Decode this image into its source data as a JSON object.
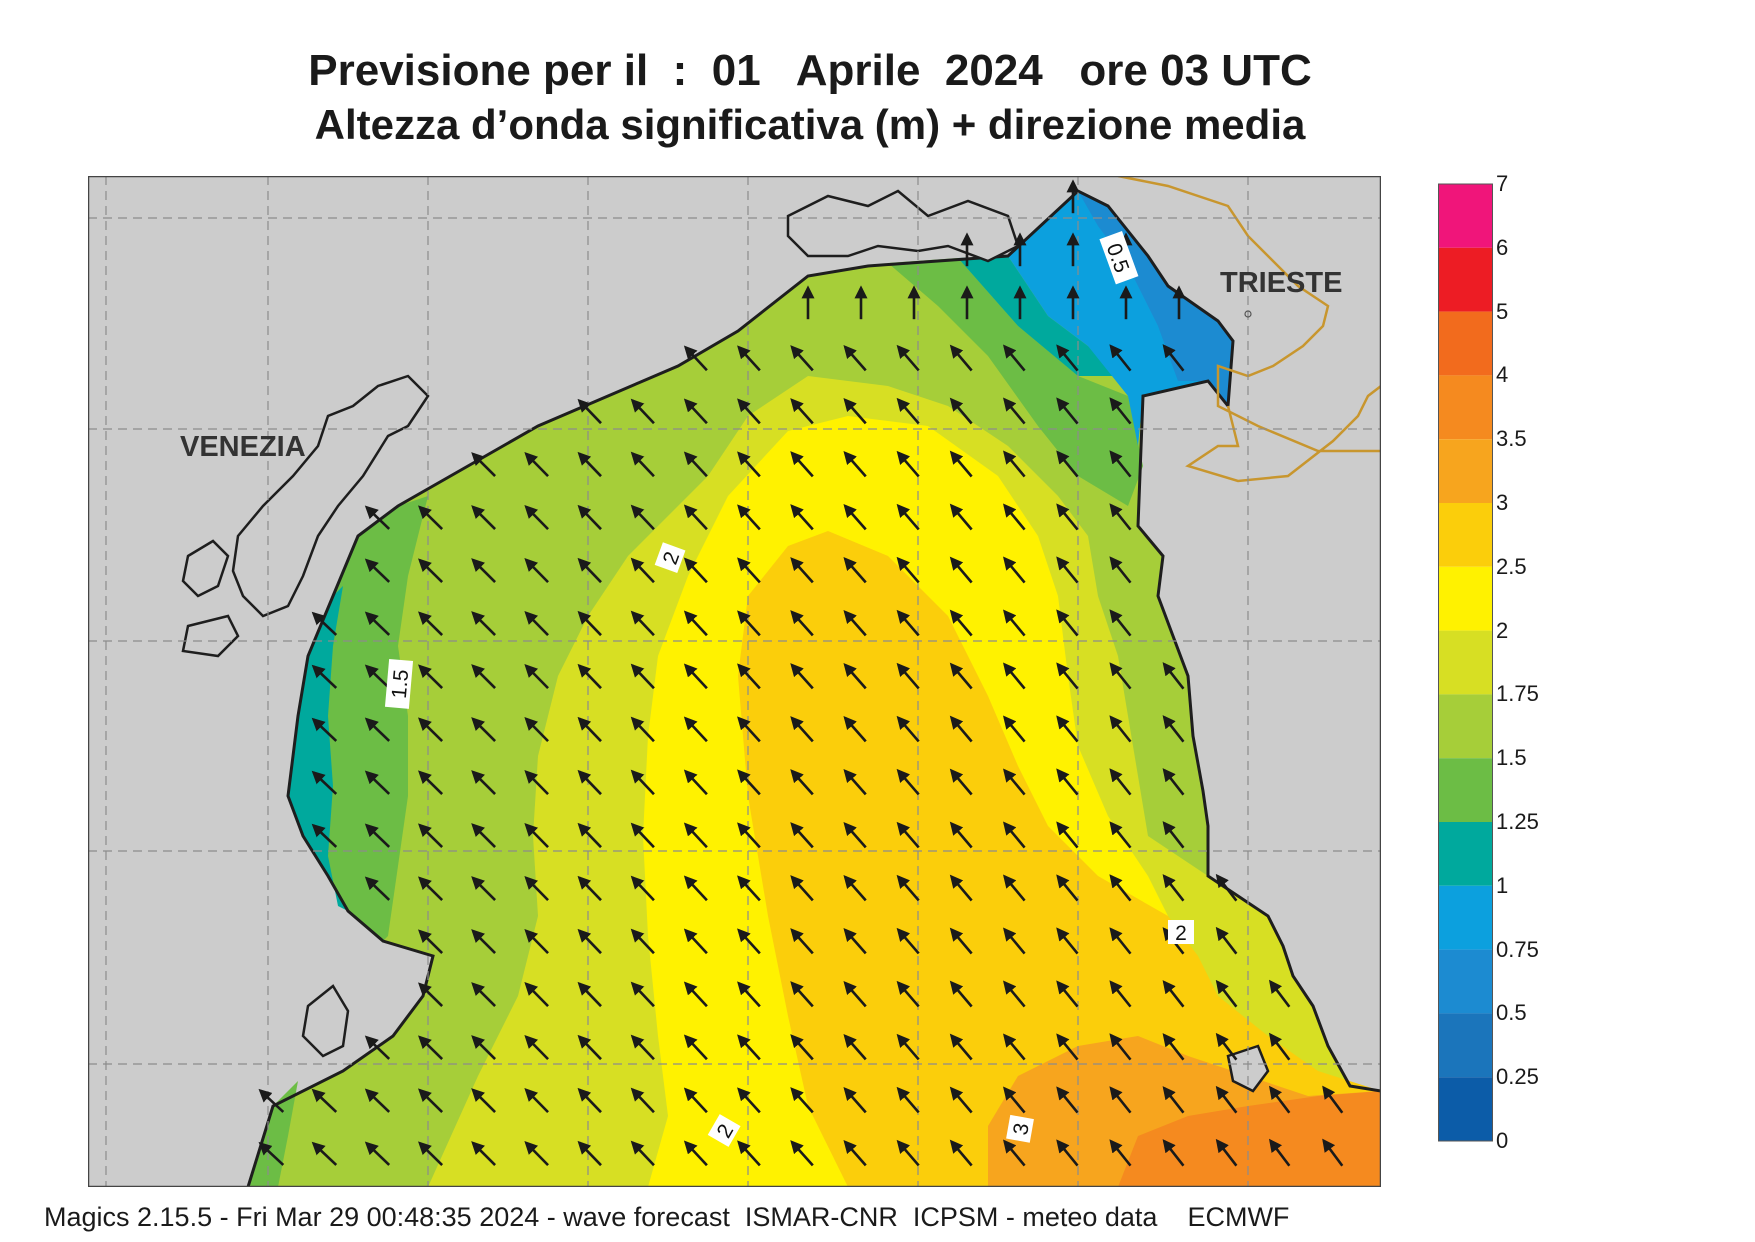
{
  "title": {
    "line1": "Previsione per il  :  01   Aprile  2024   ore 03 UTC",
    "line2": "Altezza d’onda significativa (m) + direzione media"
  },
  "cities": [
    "VENEZIA",
    "TRIESTE"
  ],
  "contour_labels": [
    "0.5",
    "2",
    "1.5",
    "2",
    "3",
    "2"
  ],
  "colorbar": {
    "labels": [
      "7",
      "6",
      "5",
      "4",
      "3.5",
      "3",
      "2.5",
      "2",
      "1.75",
      "1.5",
      "1.25",
      "1",
      "0.75",
      "0.5",
      "0.25",
      "0"
    ],
    "colors": [
      "#f0157a",
      "#ed1c24",
      "#f26b1d",
      "#f58a1f",
      "#f7a51e",
      "#fbce0b",
      "#fff200",
      "#d7df23",
      "#a6ce39",
      "#6cbd45",
      "#00a99d",
      "#0ca0de",
      "#1c8bd1",
      "#1b75bb",
      "#0c5ca8"
    ]
  },
  "colors": {
    "land": "#cccccc",
    "coast": "#1e1e1e",
    "border": "#c8962e",
    "grid": "#8c8c8c",
    "arrow": "#1a1a1a"
  },
  "arrow_direction": "north-west",
  "footer": "Magics 2.15.5 - Fri Mar 29 00:48:35 2024 - wave forecast  ISMAR-CNR  ICPSM - meteo data    ECMWF"
}
